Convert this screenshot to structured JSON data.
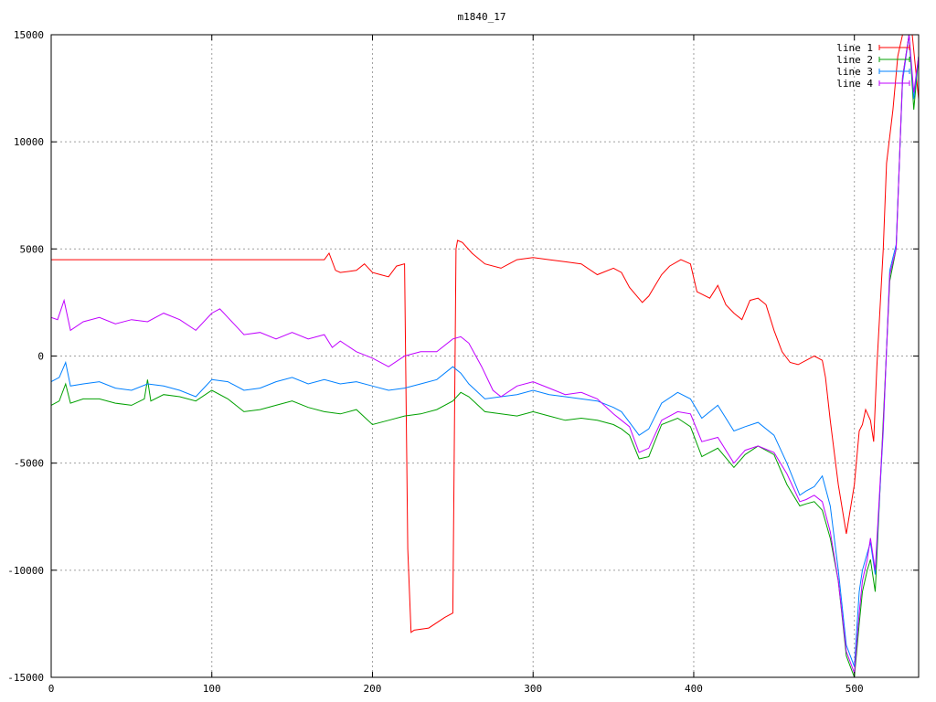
{
  "chart_data": {
    "type": "line",
    "title": "m1840_17",
    "xlim": [
      0,
      540
    ],
    "ylim": [
      -15000,
      15000
    ],
    "x_ticks": [
      0,
      100,
      200,
      300,
      400,
      500
    ],
    "y_ticks": [
      -15000,
      -10000,
      -5000,
      0,
      5000,
      10000,
      15000
    ],
    "grid": true,
    "legend_position": "top-right",
    "series": [
      {
        "name": "line 1",
        "color": "#ff0000",
        "x": [
          0,
          170,
          173,
          177,
          180,
          190,
          195,
          200,
          205,
          210,
          215,
          220,
          222,
          224,
          226,
          235,
          245,
          250,
          252,
          253,
          256,
          262,
          270,
          280,
          285,
          290,
          300,
          310,
          320,
          330,
          340,
          350,
          355,
          360,
          368,
          372,
          380,
          385,
          392,
          398,
          402,
          410,
          415,
          420,
          425,
          430,
          435,
          440,
          445,
          450,
          455,
          460,
          465,
          470,
          475,
          480,
          482,
          485,
          490,
          495,
          500,
          503,
          505,
          507,
          510,
          512,
          514,
          518,
          520,
          524,
          527,
          530,
          533,
          536,
          540
        ],
        "y": [
          4500,
          4500,
          4800,
          4000,
          3900,
          4000,
          4300,
          3900,
          3800,
          3700,
          4200,
          4300,
          -9000,
          -12900,
          -12800,
          -12700,
          -12200,
          -12000,
          5000,
          5400,
          5300,
          4800,
          4300,
          4100,
          4300,
          4500,
          4600,
          4500,
          4400,
          4300,
          3800,
          4100,
          3900,
          3200,
          2500,
          2800,
          3800,
          4200,
          4500,
          4300,
          3000,
          2700,
          3300,
          2400,
          2000,
          1700,
          2600,
          2700,
          2400,
          1200,
          200,
          -300,
          -400,
          -200,
          0,
          -200,
          -1000,
          -3000,
          -6000,
          -8300,
          -6000,
          -3500,
          -3200,
          -2500,
          -3000,
          -4000,
          -500,
          5000,
          9000,
          11500,
          14000,
          15200,
          15400,
          15000,
          12000
        ]
      },
      {
        "name": "line 2",
        "color": "#00a000",
        "x": [
          0,
          5,
          9,
          12,
          20,
          30,
          40,
          50,
          58,
          60,
          62,
          70,
          80,
          90,
          100,
          110,
          120,
          130,
          140,
          150,
          160,
          170,
          180,
          190,
          200,
          210,
          220,
          230,
          240,
          250,
          255,
          260,
          270,
          280,
          290,
          300,
          310,
          320,
          330,
          340,
          350,
          355,
          360,
          366,
          372,
          380,
          390,
          398,
          405,
          415,
          425,
          432,
          440,
          450,
          458,
          466,
          470,
          475,
          480,
          485,
          490,
          495,
          500,
          503,
          505,
          508,
          510,
          513,
          518,
          522,
          526,
          530,
          534,
          537,
          540
        ],
        "y": [
          -2300,
          -2100,
          -1300,
          -2200,
          -2000,
          -2000,
          -2200,
          -2300,
          -2000,
          -1100,
          -2100,
          -1800,
          -1900,
          -2100,
          -1600,
          -2000,
          -2600,
          -2500,
          -2300,
          -2100,
          -2400,
          -2600,
          -2700,
          -2500,
          -3200,
          -3000,
          -2800,
          -2700,
          -2500,
          -2100,
          -1700,
          -1900,
          -2600,
          -2700,
          -2800,
          -2600,
          -2800,
          -3000,
          -2900,
          -3000,
          -3200,
          -3400,
          -3700,
          -4800,
          -4700,
          -3200,
          -2900,
          -3300,
          -4700,
          -4300,
          -5200,
          -4600,
          -4200,
          -4600,
          -6000,
          -7000,
          -6900,
          -6800,
          -7200,
          -8500,
          -10500,
          -14000,
          -15000,
          -12500,
          -11000,
          -10000,
          -9500,
          -11000,
          -3000,
          3500,
          5000,
          13000,
          15400,
          11500,
          14000
        ]
      },
      {
        "name": "line 3",
        "color": "#0080ff",
        "x": [
          0,
          5,
          9,
          12,
          20,
          30,
          40,
          50,
          60,
          70,
          80,
          90,
          100,
          110,
          120,
          130,
          140,
          150,
          160,
          170,
          180,
          190,
          200,
          210,
          220,
          230,
          240,
          250,
          255,
          260,
          270,
          280,
          290,
          300,
          310,
          320,
          330,
          340,
          350,
          355,
          360,
          366,
          372,
          380,
          390,
          398,
          405,
          415,
          425,
          432,
          440,
          450,
          458,
          466,
          470,
          475,
          480,
          485,
          490,
          495,
          500,
          503,
          505,
          508,
          510,
          513,
          518,
          522,
          526,
          530,
          534,
          537,
          540
        ],
        "y": [
          -1200,
          -1000,
          -300,
          -1400,
          -1300,
          -1200,
          -1500,
          -1600,
          -1300,
          -1400,
          -1600,
          -1900,
          -1100,
          -1200,
          -1600,
          -1500,
          -1200,
          -1000,
          -1300,
          -1100,
          -1300,
          -1200,
          -1400,
          -1600,
          -1500,
          -1300,
          -1100,
          -500,
          -800,
          -1300,
          -2000,
          -1900,
          -1800,
          -1600,
          -1800,
          -1900,
          -2000,
          -2100,
          -2400,
          -2600,
          -3100,
          -3700,
          -3400,
          -2200,
          -1700,
          -2000,
          -2900,
          -2300,
          -3500,
          -3300,
          -3100,
          -3700,
          -5000,
          -6500,
          -6300,
          -6100,
          -5600,
          -7000,
          -10000,
          -13500,
          -14500,
          -11000,
          -10000,
          -9200,
          -8700,
          -10200,
          -3500,
          4000,
          5200,
          12800,
          15200,
          12000,
          14000
        ]
      },
      {
        "name": "line 4",
        "color": "#c000ff",
        "x": [
          0,
          4,
          8,
          12,
          20,
          30,
          40,
          50,
          60,
          70,
          80,
          90,
          100,
          105,
          110,
          120,
          130,
          140,
          150,
          160,
          170,
          175,
          180,
          190,
          200,
          210,
          220,
          230,
          240,
          250,
          255,
          260,
          268,
          275,
          280,
          290,
          300,
          310,
          320,
          330,
          340,
          350,
          355,
          360,
          366,
          372,
          380,
          390,
          398,
          405,
          415,
          425,
          432,
          440,
          450,
          458,
          466,
          470,
          475,
          480,
          485,
          490,
          495,
          500,
          503,
          505,
          508,
          510,
          513,
          518,
          522,
          526,
          530,
          534,
          537,
          540
        ],
        "y": [
          1800,
          1700,
          2600,
          1200,
          1600,
          1800,
          1500,
          1700,
          1600,
          2000,
          1700,
          1200,
          2000,
          2200,
          1800,
          1000,
          1100,
          800,
          1100,
          800,
          1000,
          400,
          700,
          200,
          -100,
          -500,
          0,
          200,
          200,
          800,
          900,
          600,
          -500,
          -1600,
          -1900,
          -1400,
          -1200,
          -1500,
          -1800,
          -1700,
          -2000,
          -2700,
          -3000,
          -3300,
          -4500,
          -4300,
          -3000,
          -2600,
          -2700,
          -4000,
          -3800,
          -5000,
          -4400,
          -4200,
          -4500,
          -5500,
          -6800,
          -6700,
          -6500,
          -6800,
          -8200,
          -10500,
          -13800,
          -14800,
          -12000,
          -10500,
          -9500,
          -8500,
          -10000,
          -3300,
          3800,
          5000,
          13000,
          15300,
          12300,
          14000
        ]
      }
    ]
  }
}
